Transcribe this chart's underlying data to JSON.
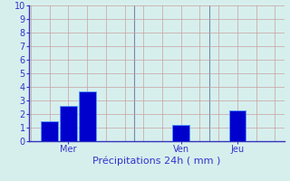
{
  "bar_positions": [
    1,
    2,
    3,
    8,
    11
  ],
  "bar_heights": [
    1.5,
    2.6,
    3.65,
    1.2,
    2.3
  ],
  "bar_color": "#0000CC",
  "bar_edge_color": "#5599FF",
  "bar_width": 0.9,
  "xlabel": "Précipitations 24h ( mm )",
  "xlabel_color": "#3333CC",
  "ylim": [
    0,
    10
  ],
  "yticks": [
    0,
    1,
    2,
    3,
    4,
    5,
    6,
    7,
    8,
    9,
    10
  ],
  "xtick_labels": [
    "Mer",
    "Ven",
    "Jeu"
  ],
  "xtick_positions": [
    2,
    8,
    11
  ],
  "vline_positions": [
    5.5,
    9.5
  ],
  "xlim": [
    -0.1,
    13.5
  ],
  "background_color": "#D6EFED",
  "grid_color": "#C8A0A0",
  "axis_color": "#3333BB",
  "tick_color": "#3333CC",
  "label_fontsize": 8,
  "tick_fontsize": 7
}
